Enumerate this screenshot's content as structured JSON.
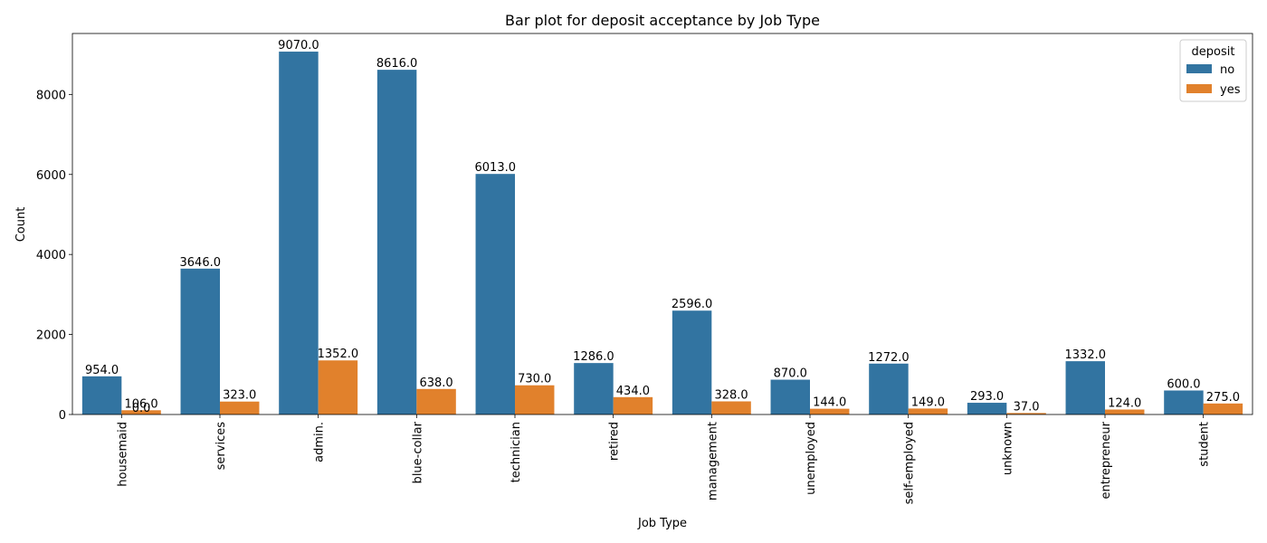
{
  "chart_data": {
    "type": "bar",
    "title": "Bar plot for deposit acceptance by Job Type",
    "xlabel": "Job Type",
    "ylabel": "Count",
    "categories": [
      "housemaid",
      "services",
      "admin.",
      "blue-collar",
      "technician",
      "retired",
      "management",
      "unemployed",
      "self-employed",
      "unknown",
      "entrepreneur",
      "student"
    ],
    "series": [
      {
        "name": "no",
        "color": "#3274a1",
        "values": [
          954,
          3646,
          9070,
          8616,
          6013,
          1286,
          2596,
          870,
          1272,
          293,
          1332,
          600
        ]
      },
      {
        "name": "yes",
        "color": "#e1812c",
        "values": [
          106,
          323,
          1352,
          638,
          730,
          434,
          328,
          144,
          149,
          37,
          124,
          275
        ]
      }
    ],
    "bar_labels": [
      [
        "954.0",
        "3646.0",
        "9070.0",
        "8616.0",
        "6013.0",
        "1286.0",
        "2596.0",
        "870.0",
        "1272.0",
        "293.0",
        "1332.0",
        "600.0"
      ],
      [
        "106.0",
        "323.0",
        "1352.0",
        "638.0",
        "730.0",
        "434.0",
        "328.0",
        "144.0",
        "149.0",
        "37.0",
        "124.0",
        "275.0"
      ]
    ],
    "extra_labels": [
      "0.0"
    ],
    "ylim": [
      0,
      9523.5
    ],
    "yticks": [
      0,
      2000,
      4000,
      6000,
      8000
    ],
    "grid": false,
    "legend": {
      "title": "deposit",
      "position": "top-right"
    }
  }
}
